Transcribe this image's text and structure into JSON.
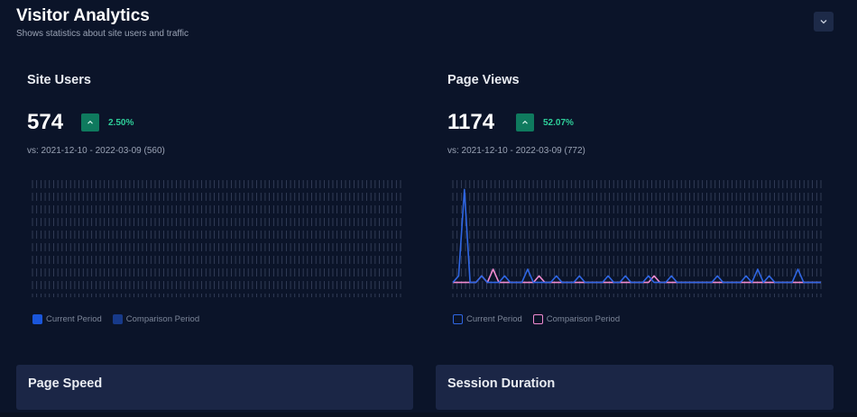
{
  "header": {
    "title": "Visitor Analytics",
    "subtitle": "Shows statistics about site users and traffic",
    "collapse_icon": "chevron-down-icon"
  },
  "site_users": {
    "title": "Site Users",
    "value": "574",
    "trend_icon": "caret-up-icon",
    "change": "2.50%",
    "comparison": "vs: 2021-12-10 - 2022-03-09 (560)",
    "legend": {
      "current": "Current Period",
      "comparison": "Comparison Period"
    },
    "colors": {
      "current": "#1a56db",
      "comparison": "#173a8a",
      "grid": "#3a4560"
    }
  },
  "page_views": {
    "title": "Page Views",
    "value": "1174",
    "trend_icon": "caret-up-icon",
    "change": "52.07%",
    "comparison": "vs: 2021-12-10 - 2022-03-09 (772)",
    "legend": {
      "current": "Current Period",
      "comparison": "Comparison Period"
    },
    "colors": {
      "current": "#2f66e3",
      "comparison": "#f08ad0",
      "grid": "#3a4560"
    }
  },
  "cards": {
    "page_speed": {
      "title": "Page Speed"
    },
    "session_duration": {
      "title": "Session Duration"
    }
  },
  "chart_data": [
    {
      "type": "line",
      "title": "Site Users",
      "series": [
        {
          "name": "Current Period",
          "values": []
        },
        {
          "name": "Comparison Period",
          "values": []
        }
      ]
    },
    {
      "type": "line",
      "title": "Page Views",
      "ylim": [
        0,
        16
      ],
      "series": [
        {
          "name": "Current Period",
          "values": [
            1,
            2,
            15,
            1,
            1,
            2,
            1,
            1,
            1,
            2,
            1,
            1,
            1,
            3,
            1,
            1,
            1,
            1,
            2,
            1,
            1,
            1,
            2,
            1,
            1,
            1,
            1,
            2,
            1,
            1,
            2,
            1,
            1,
            1,
            2,
            1,
            1,
            1,
            2,
            1,
            1,
            1,
            1,
            1,
            1,
            1,
            2,
            1,
            1,
            1,
            1,
            2,
            1,
            3,
            1,
            2,
            1,
            1,
            1,
            1,
            3,
            1,
            1,
            1,
            1
          ]
        },
        {
          "name": "Comparison Period",
          "values": [
            1,
            1,
            1,
            1,
            1,
            2,
            1,
            3,
            1,
            1,
            1,
            1,
            1,
            1,
            1,
            2,
            1,
            1,
            1,
            1,
            1,
            1,
            1,
            1,
            1,
            1,
            1,
            1,
            1,
            1,
            1,
            1,
            1,
            1,
            1,
            2,
            1,
            1,
            1,
            1,
            1,
            1,
            1,
            1,
            1,
            1,
            1,
            1,
            1,
            1,
            1,
            1,
            1,
            1,
            1,
            1,
            1,
            1,
            1,
            1,
            1,
            1,
            1,
            1,
            1
          ]
        }
      ]
    }
  ]
}
